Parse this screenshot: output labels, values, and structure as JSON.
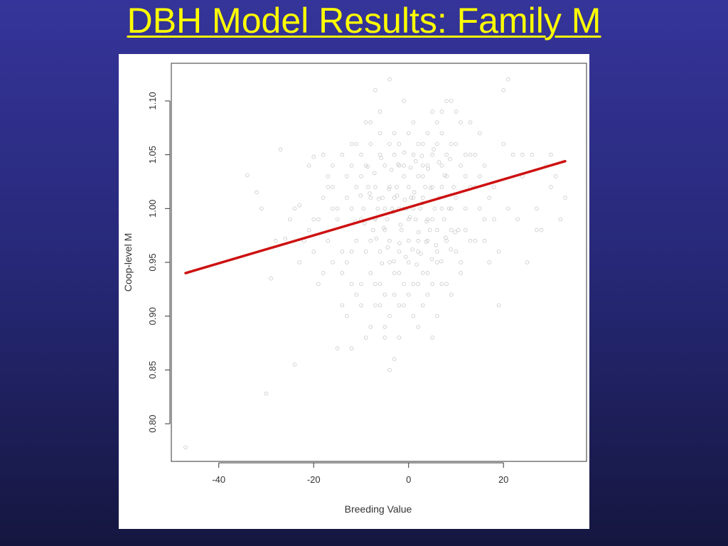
{
  "slide": {
    "title": "DBH Model Results: Family M"
  },
  "chart_data": {
    "type": "scatter",
    "title": "",
    "xlabel": "Breeding Value",
    "ylabel": "Coop-level M",
    "xlim": [
      -50,
      37.5
    ],
    "ylim": [
      0.765,
      1.135
    ],
    "xticks": [
      -40,
      -20,
      0,
      20
    ],
    "xtick_labels": [
      "-40",
      "-20",
      "0",
      "20"
    ],
    "yticks": [
      0.8,
      0.85,
      0.9,
      0.95,
      1.0,
      1.05,
      1.1
    ],
    "ytick_labels": [
      "0.80",
      "0.85",
      "0.90",
      "0.95",
      "1.00",
      "1.05",
      "1.10"
    ],
    "grid": false,
    "legend": "none",
    "colors": {
      "points": "#c8c8c8",
      "fit_line": "#cc1111",
      "frame": "#333333"
    },
    "series": [
      {
        "kind": "points",
        "points": [
          [
            -47,
            0.778
          ],
          [
            -30,
            0.828
          ],
          [
            -24,
            0.855
          ],
          [
            -34,
            1.031
          ],
          [
            -32,
            1.015
          ],
          [
            -27,
            1.055
          ],
          [
            -29,
            0.935
          ],
          [
            -23,
            1.003
          ],
          [
            -22,
            0.97
          ],
          [
            -21,
            1.04
          ],
          [
            -20,
            1.048
          ],
          [
            -26,
            0.972
          ],
          [
            -18,
            0.94
          ],
          [
            -19,
            0.99
          ],
          [
            -17,
            1.03
          ],
          [
            -16,
            1.02
          ],
          [
            -15,
            0.99
          ],
          [
            -14,
            0.91
          ],
          [
            -13,
            0.95
          ],
          [
            -12,
            1.0
          ],
          [
            -11,
            0.97
          ],
          [
            -10,
            1.03
          ],
          [
            -9,
            0.96
          ],
          [
            -8,
            1.01
          ],
          [
            -7,
            0.99
          ],
          [
            -6,
            1.05
          ],
          [
            -5,
            0.98
          ],
          [
            -4,
            1.02
          ],
          [
            -3,
            0.94
          ],
          [
            -2,
            1.0
          ],
          [
            -1,
            1.03
          ],
          [
            0,
            0.99
          ],
          [
            1,
            1.01
          ],
          [
            2,
            0.97
          ],
          [
            3,
            1.04
          ],
          [
            4,
            0.99
          ],
          [
            5,
            1.02
          ],
          [
            6,
            0.96
          ],
          [
            7,
            1.0
          ],
          [
            8,
            1.03
          ],
          [
            9,
            0.98
          ],
          [
            10,
            1.01
          ],
          [
            11,
            0.95
          ],
          [
            12,
            1.0
          ],
          [
            13,
            1.02
          ],
          [
            14,
            0.97
          ],
          [
            15,
            1.0
          ],
          [
            16,
            1.04
          ],
          [
            -14,
            1.05
          ],
          [
            -12,
            1.06
          ],
          [
            -9,
            1.08
          ],
          [
            -7,
            1.11
          ],
          [
            -6,
            1.09
          ],
          [
            -4,
            1.12
          ],
          [
            -3,
            1.07
          ],
          [
            -1,
            1.1
          ],
          [
            1,
            1.08
          ],
          [
            3,
            1.06
          ],
          [
            5,
            1.09
          ],
          [
            7,
            1.07
          ],
          [
            9,
            1.1
          ],
          [
            11,
            1.08
          ],
          [
            13,
            1.05
          ],
          [
            15,
            1.07
          ],
          [
            -13,
            0.9
          ],
          [
            -11,
            0.92
          ],
          [
            -9,
            0.88
          ],
          [
            -7,
            0.91
          ],
          [
            -5,
            0.89
          ],
          [
            -3,
            0.86
          ],
          [
            -1,
            0.93
          ],
          [
            1,
            0.9
          ],
          [
            3,
            0.91
          ],
          [
            5,
            0.88
          ],
          [
            7,
            0.93
          ],
          [
            9,
            0.92
          ],
          [
            11,
            0.94
          ],
          [
            -15,
            0.87
          ],
          [
            -12,
            0.87
          ],
          [
            -2,
            0.88
          ],
          [
            -10,
            0.99
          ],
          [
            -9.5,
            1.0
          ],
          [
            -8.5,
            1.02
          ],
          [
            -7.5,
            0.98
          ],
          [
            -6.5,
            1.0
          ],
          [
            -5.5,
            1.01
          ],
          [
            -4.5,
            0.99
          ],
          [
            -3.5,
            1.0
          ],
          [
            -2.5,
            1.02
          ],
          [
            -1.5,
            0.98
          ],
          [
            -0.5,
            1.0
          ],
          [
            0.5,
            1.01
          ],
          [
            1.5,
            0.99
          ],
          [
            2.5,
            1.0
          ],
          [
            3.5,
            1.02
          ],
          [
            4.5,
            0.98
          ],
          [
            5.5,
            1.0
          ],
          [
            6.5,
            1.01
          ],
          [
            7.5,
            0.99
          ],
          [
            8.5,
            1.0
          ],
          [
            9.5,
            1.02
          ],
          [
            10.5,
            0.98
          ],
          [
            -8,
            0.97
          ],
          [
            -6,
            0.96
          ],
          [
            -4,
            0.97
          ],
          [
            -2,
            0.96
          ],
          [
            0,
            0.97
          ],
          [
            2,
            0.96
          ],
          [
            4,
            0.97
          ],
          [
            6,
            0.98
          ],
          [
            8,
            0.97
          ],
          [
            -5,
            1.04
          ],
          [
            -3,
            1.05
          ],
          [
            -1,
            1.04
          ],
          [
            1,
            1.05
          ],
          [
            3,
            1.03
          ],
          [
            5,
            1.05
          ],
          [
            7,
            1.04
          ],
          [
            18,
            1.02
          ],
          [
            19,
            0.96
          ],
          [
            20,
            1.06
          ],
          [
            21,
            1.0
          ],
          [
            22,
            1.05
          ],
          [
            23,
            0.99
          ],
          [
            24,
            1.03
          ],
          [
            25,
            0.95
          ],
          [
            26,
            1.05
          ],
          [
            27,
            1.0
          ],
          [
            28,
            0.98
          ],
          [
            29,
            1.04
          ],
          [
            30,
            1.02
          ],
          [
            31,
            1.03
          ],
          [
            32,
            0.99
          ],
          [
            33,
            1.01
          ],
          [
            19,
            0.91
          ],
          [
            20,
            1.11
          ],
          [
            21,
            1.12
          ],
          [
            24,
            1.05
          ],
          [
            27,
            0.98
          ],
          [
            30,
            1.05
          ],
          [
            -25,
            0.99
          ],
          [
            -28,
            0.97
          ],
          [
            -31,
            1.0
          ],
          [
            -20,
            0.96
          ],
          [
            -19,
            0.93
          ],
          [
            -17,
            0.97
          ],
          [
            -16,
            0.95
          ],
          [
            -18,
            1.05
          ],
          [
            -14,
            0.94
          ],
          [
            -13,
            1.03
          ],
          [
            -11,
            1.06
          ],
          [
            -10,
            0.93
          ],
          [
            -8,
            0.94
          ],
          [
            -6,
            0.93
          ],
          [
            -4,
            0.95
          ],
          [
            -2,
            0.94
          ],
          [
            0,
            0.95
          ],
          [
            2,
            0.93
          ],
          [
            4,
            0.94
          ],
          [
            6,
            0.95
          ],
          [
            8,
            0.93
          ],
          [
            10,
            0.96
          ],
          [
            12,
            0.98
          ],
          [
            14,
            1.02
          ],
          [
            16,
            0.99
          ],
          [
            17,
            1.01
          ],
          [
            13,
            0.97
          ],
          [
            11,
            1.04
          ],
          [
            9,
            1.06
          ],
          [
            7,
            1.09
          ],
          [
            -9,
            1.04
          ],
          [
            -11,
            1.02
          ],
          [
            -12,
            0.96
          ],
          [
            -13,
            1.01
          ],
          [
            -16,
            1.0
          ],
          [
            -17,
            1.02
          ],
          [
            -6,
            0.91
          ],
          [
            -4,
            0.9
          ],
          [
            -2,
            0.91
          ],
          [
            0,
            0.92
          ],
          [
            2,
            0.89
          ],
          [
            4,
            0.92
          ],
          [
            6,
            0.9
          ],
          [
            -7,
            0.93
          ],
          [
            -5,
            0.92
          ],
          [
            -3,
            0.92
          ],
          [
            -1,
            0.91
          ],
          [
            1,
            0.93
          ],
          [
            3,
            0.94
          ],
          [
            5,
            0.93
          ],
          [
            -8,
            1.06
          ],
          [
            -2,
            1.06
          ],
          [
            0,
            1.07
          ],
          [
            2,
            1.06
          ],
          [
            4,
            1.07
          ],
          [
            6,
            1.06
          ],
          [
            8,
            1.05
          ],
          [
            10,
            1.06
          ],
          [
            12,
            1.05
          ],
          [
            -7,
            1.02
          ],
          [
            -5,
            1.0
          ],
          [
            -3,
            1.01
          ],
          [
            -1,
            1.0
          ],
          [
            1,
            1.0
          ],
          [
            3,
            1.01
          ],
          [
            5,
            0.99
          ],
          [
            7,
            1.02
          ],
          [
            9,
            1.0
          ],
          [
            -4,
            0.85
          ],
          [
            -5,
            0.88
          ],
          [
            -8,
            0.89
          ],
          [
            -10,
            0.91
          ],
          [
            -12,
            0.93
          ],
          [
            -14,
            0.96
          ],
          [
            -15,
            1.0
          ],
          [
            -16,
            1.04
          ],
          [
            -18,
            1.01
          ],
          [
            -20,
            0.99
          ],
          [
            -21,
            0.98
          ],
          [
            -23,
            0.95
          ],
          [
            -24,
            1.0
          ],
          [
            14,
            1.05
          ],
          [
            15,
            1.03
          ],
          [
            16,
            0.97
          ],
          [
            17,
            0.95
          ],
          [
            18,
            0.99
          ],
          [
            13,
            1.08
          ],
          [
            12,
            1.03
          ],
          [
            10,
            1.09
          ],
          [
            8,
            1.1
          ],
          [
            6,
            1.08
          ],
          [
            4,
            1.04
          ],
          [
            2,
            1.03
          ],
          [
            0,
            1.02
          ],
          [
            -2,
            1.04
          ],
          [
            -4,
            1.06
          ],
          [
            -6,
            1.07
          ],
          [
            -8,
            1.08
          ],
          [
            -10,
            1.05
          ],
          [
            -12,
            1.04
          ],
          [
            -3.2,
            0.997
          ],
          [
            -2.4,
            1.012
          ],
          [
            -1.7,
            0.985
          ],
          [
            -0.8,
            1.008
          ],
          [
            0.3,
            0.992
          ],
          [
            1.2,
            1.015
          ],
          [
            2.1,
            0.978
          ],
          [
            2.9,
            1.005
          ],
          [
            3.8,
            0.988
          ],
          [
            4.6,
            1.019
          ],
          [
            -4.1,
            1.018
          ],
          [
            -5.2,
            0.982
          ],
          [
            -6.3,
            1.009
          ],
          [
            -7.1,
            0.991
          ],
          [
            -8.2,
            1.014
          ],
          [
            -9.3,
            0.986
          ],
          [
            0.8,
            0.962
          ],
          [
            1.7,
            0.948
          ],
          [
            -0.6,
            0.955
          ],
          [
            -1.9,
            0.968
          ],
          [
            -3.1,
            0.951
          ],
          [
            -4.4,
            0.964
          ],
          [
            -5.6,
            0.949
          ],
          [
            -6.8,
            0.972
          ],
          [
            2.6,
            0.958
          ],
          [
            3.7,
            0.969
          ],
          [
            4.9,
            0.953
          ],
          [
            5.8,
            0.966
          ],
          [
            6.9,
            0.951
          ],
          [
            7.8,
            0.973
          ],
          [
            8.9,
            0.962
          ],
          [
            9.8,
            0.978
          ],
          [
            0.4,
            1.038
          ],
          [
            1.5,
            1.044
          ],
          [
            -0.9,
            1.052
          ],
          [
            -2.2,
            1.041
          ],
          [
            -3.6,
            1.036
          ],
          [
            2.8,
            1.049
          ],
          [
            4.1,
            1.037
          ],
          [
            5.3,
            1.055
          ],
          [
            6.4,
            1.043
          ],
          [
            7.6,
            1.031
          ],
          [
            8.7,
            1.046
          ],
          [
            -5.8,
            1.047
          ],
          [
            -7.2,
            1.033
          ],
          [
            -8.6,
            1.039
          ],
          [
            -10.1,
            1.012
          ],
          [
            -11.2,
            0.988
          ]
        ]
      },
      {
        "kind": "fit_line",
        "points": [
          [
            -47,
            0.94
          ],
          [
            33,
            1.044
          ]
        ]
      }
    ]
  }
}
